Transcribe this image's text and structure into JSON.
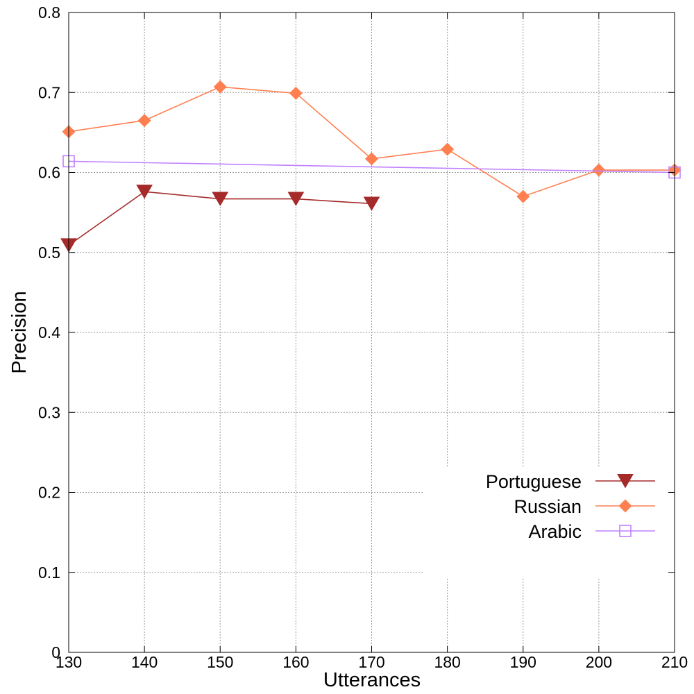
{
  "chart_data": {
    "type": "line",
    "xlabel": "Utterances",
    "ylabel": "Precision",
    "xlim": [
      130,
      210
    ],
    "ylim": [
      0,
      0.8
    ],
    "xticks": [
      130,
      140,
      150,
      160,
      170,
      180,
      190,
      200,
      210
    ],
    "yticks": [
      0,
      0.1,
      0.2,
      0.3,
      0.4,
      0.5,
      0.6,
      0.7,
      0.8
    ],
    "xtick_labels": [
      "130",
      "140",
      "150",
      "160",
      "170",
      "180",
      "190",
      "200",
      "210"
    ],
    "ytick_labels": [
      "0",
      "0.1",
      "0.2",
      "0.3",
      "0.4",
      "0.5",
      "0.6",
      "0.7",
      "0.8"
    ],
    "grid": true,
    "legend_position": "bottom-right",
    "series": [
      {
        "name": "Portuguese",
        "color": "#a52a2a",
        "marker": "triangle-down",
        "x": [
          130,
          140,
          150,
          160,
          170
        ],
        "y": [
          0.509,
          0.576,
          0.567,
          0.567,
          0.561
        ]
      },
      {
        "name": "Russian",
        "color": "#ff7f50",
        "marker": "diamond",
        "x": [
          130,
          140,
          150,
          160,
          170,
          180,
          190,
          200,
          210
        ],
        "y": [
          0.651,
          0.665,
          0.707,
          0.699,
          0.617,
          0.629,
          0.57,
          0.603,
          0.603
        ]
      },
      {
        "name": "Arabic",
        "color": "#c080ff",
        "marker": "open-square",
        "x": [
          130,
          210
        ],
        "y": [
          0.614,
          0.6
        ]
      }
    ]
  }
}
